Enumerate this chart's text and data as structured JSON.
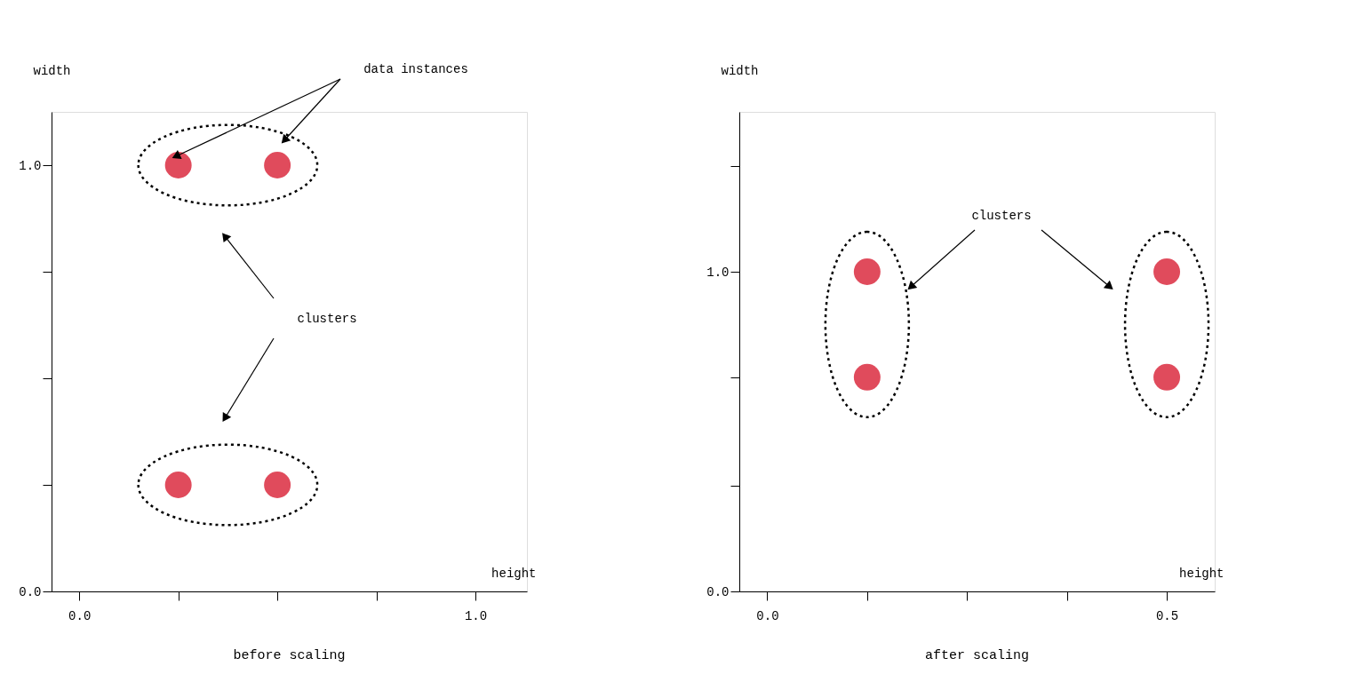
{
  "chart_data": [
    {
      "type": "scatter",
      "title": "before scaling",
      "xlabel": "height",
      "ylabel": "width",
      "xlim": [
        -0.07,
        1.13
      ],
      "ylim": [
        0,
        1.125
      ],
      "xticks": [
        {
          "value": 0,
          "label": "0.0"
        },
        {
          "value": 0.25,
          "label": null
        },
        {
          "value": 0.5,
          "label": null
        },
        {
          "value": 0.75,
          "label": null
        },
        {
          "value": 1.0,
          "label": "1.0"
        }
      ],
      "yticks": [
        {
          "value": 0,
          "label": "0.0"
        },
        {
          "value": 0.25,
          "label": null
        },
        {
          "value": 0.5,
          "label": null
        },
        {
          "value": 0.75,
          "label": null
        },
        {
          "value": 1.0,
          "label": "1.0"
        }
      ],
      "marker": "circle",
      "series": [
        {
          "color": "#e04b5c",
          "x": [
            0.25,
            0.5
          ],
          "values": [
            1.0,
            1.0
          ]
        },
        {
          "color": "#e04b5c",
          "x": [
            0.25,
            0.5
          ],
          "values": [
            0.25,
            0.25
          ]
        }
      ],
      "annotations": [
        "data instances",
        "clusters"
      ]
    },
    {
      "type": "scatter",
      "title": "after scaling",
      "xlabel": "height",
      "ylabel": "width",
      "xlim": [
        -0.035,
        0.56
      ],
      "ylim": [
        0,
        1.5
      ],
      "xticks": [
        {
          "value": 0,
          "label": "0.0"
        },
        {
          "value": 0.125,
          "label": null
        },
        {
          "value": 0.25,
          "label": null
        },
        {
          "value": 0.375,
          "label": null
        },
        {
          "value": 0.5,
          "label": "0.5"
        }
      ],
      "yticks": [
        {
          "value": 0,
          "label": "0.0"
        },
        {
          "value": 0.33,
          "label": null
        },
        {
          "value": 0.67,
          "label": null
        },
        {
          "value": 1.0,
          "label": "1.0"
        },
        {
          "value": 1.33,
          "label": null
        }
      ],
      "marker": "circle",
      "series": [
        {
          "color": "#e04b5c",
          "x": [
            0.125,
            0.125
          ],
          "values": [
            1.0,
            0.67
          ]
        },
        {
          "color": "#e04b5c",
          "x": [
            0.5,
            0.5
          ],
          "values": [
            1.0,
            0.67
          ]
        }
      ],
      "annotations": [
        "clusters"
      ]
    }
  ]
}
